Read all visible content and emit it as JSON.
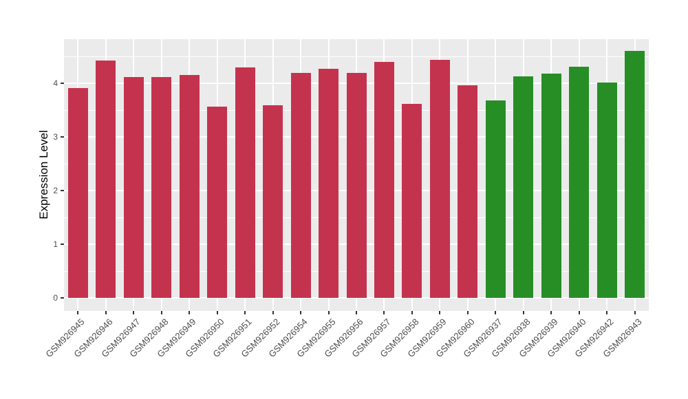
{
  "chart_data": {
    "type": "bar",
    "title": "",
    "xlabel": "",
    "ylabel": "Expression Level",
    "legend_position": "none",
    "grid": "white major and minor horizontal lines, white major vertical lines on gray panel",
    "panel_background": "#EBEBEB",
    "gridline_color": "#FFFFFF",
    "ylim": [
      -0.24,
      4.82
    ],
    "yticks": [
      0,
      1,
      2,
      3,
      4
    ],
    "categories": [
      "GSM926945",
      "GSM926946",
      "GSM926947",
      "GSM926948",
      "GSM926949",
      "GSM926950",
      "GSM926951",
      "GSM926952",
      "GSM926954",
      "GSM926955",
      "GSM926956",
      "GSM926957",
      "GSM926958",
      "GSM926959",
      "GSM926960",
      "GSM926937",
      "GSM926938",
      "GSM926939",
      "GSM926940",
      "GSM926942",
      "GSM926943"
    ],
    "values": [
      3.91,
      4.42,
      4.12,
      4.12,
      4.15,
      3.57,
      4.3,
      3.59,
      4.19,
      4.27,
      4.19,
      4.4,
      3.62,
      4.44,
      3.96,
      3.68,
      4.13,
      4.18,
      4.31,
      4.01,
      4.6
    ],
    "bar_groups": [
      "red",
      "red",
      "red",
      "red",
      "red",
      "red",
      "red",
      "red",
      "red",
      "red",
      "red",
      "red",
      "red",
      "red",
      "red",
      "green",
      "green",
      "green",
      "green",
      "green",
      "green"
    ],
    "colors": {
      "red": "#C4334E",
      "green": "#278E26"
    },
    "tick_mark_color": "#333333",
    "axis_text_color": "#4D4D4D",
    "axis_title_color": "#000000"
  }
}
